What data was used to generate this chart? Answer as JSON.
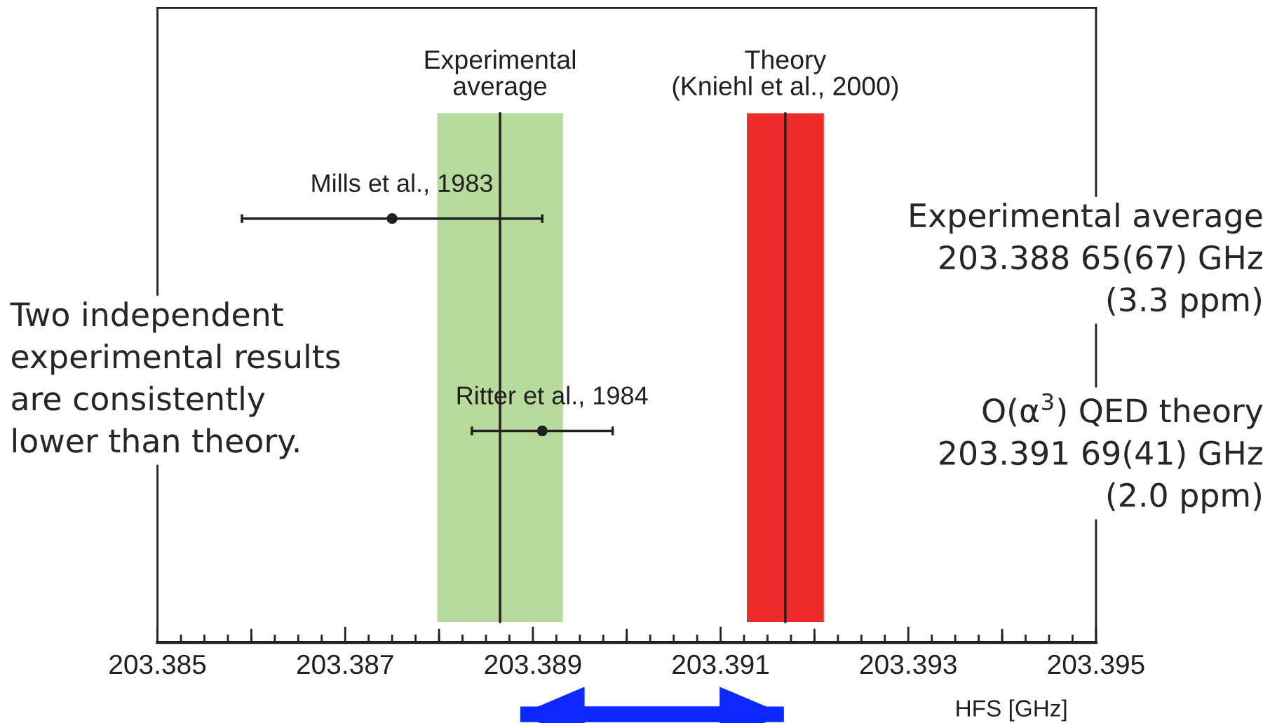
{
  "chart_data": {
    "type": "scatter",
    "orientation": "horizontal",
    "xlabel": "HFS [GHz]",
    "categories": [
      "Mills et al., 1983",
      "Ritter et al., 1984"
    ],
    "values": [
      203.3875,
      203.3891
    ],
    "errors": [
      0.0016,
      0.00075
    ],
    "color": "#231f20",
    "marker": "circle",
    "xlim": [
      203.385,
      203.395
    ],
    "xticks": [
      203.385,
      203.387,
      203.389,
      203.391,
      203.393,
      203.395
    ],
    "tick_labels": "x",
    "grid": false,
    "bands": [
      {
        "axis": "x",
        "from": 203.38798,
        "to": 203.38932,
        "label": "Experimental\naverage",
        "color": "#b6db9c"
      },
      {
        "axis": "x",
        "from": 203.39128,
        "to": 203.3921,
        "label": "Theory\n(Kniehl et al., 2000)",
        "color": "#ee2a2b"
      }
    ],
    "ref_lines": [
      {
        "axis": "x",
        "value": 203.38865,
        "color": "#231f20"
      },
      {
        "axis": "x",
        "value": 203.39169,
        "color": "#231f20"
      }
    ],
    "annotations": [
      "Two independent\nexperimental results\nare consistently\nlower than theory.",
      "Experimental average\n203.388 65(67) GHz\n(3.3 ppm)",
      "O(α$^{3}$) QED theory\n203.391 69(41) GHz\n(2.0 ppm)"
    ]
  }
}
